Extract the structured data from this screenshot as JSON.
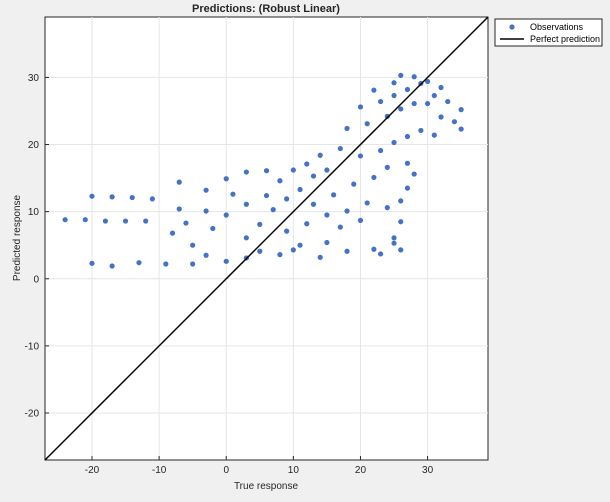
{
  "chart_data": {
    "type": "scatter",
    "title": "Predictions: (Robust Linear)",
    "xlabel": "True response",
    "ylabel": "Predicted response",
    "xlim": [
      -27,
      39
    ],
    "ylim": [
      -27,
      39
    ],
    "xticks": [
      -20,
      -10,
      0,
      10,
      20,
      30
    ],
    "yticks": [
      -20,
      -10,
      0,
      10,
      20,
      30
    ],
    "grid": true,
    "legend_location": "outside-top-right",
    "series": [
      {
        "name": "Observations",
        "kind": "markers",
        "color": "#4472c4",
        "points": [
          [
            -24,
            8.8
          ],
          [
            -21,
            8.8
          ],
          [
            -18,
            8.6
          ],
          [
            -15,
            8.6
          ],
          [
            -12,
            8.6
          ],
          [
            -20,
            12.3
          ],
          [
            -17,
            12.2
          ],
          [
            -14,
            12.1
          ],
          [
            -11,
            11.9
          ],
          [
            -20,
            2.3
          ],
          [
            -17,
            1.9
          ],
          [
            -13,
            2.4
          ],
          [
            -9,
            2.2
          ],
          [
            -5,
            2.2
          ],
          [
            -8,
            6.8
          ],
          [
            -5,
            5.0
          ],
          [
            -3,
            3.5
          ],
          [
            0,
            2.6
          ],
          [
            3,
            3.1
          ],
          [
            -7,
            10.4
          ],
          [
            -3,
            10.1
          ],
          [
            -6,
            8.3
          ],
          [
            -2,
            7.5
          ],
          [
            0,
            9.5
          ],
          [
            -7,
            14.4
          ],
          [
            -3,
            13.2
          ],
          [
            0,
            14.9
          ],
          [
            1,
            12.6
          ],
          [
            3,
            11.1
          ],
          [
            3,
            6.1
          ],
          [
            5,
            4.1
          ],
          [
            8,
            3.6
          ],
          [
            11,
            5.0
          ],
          [
            14,
            3.2
          ],
          [
            18,
            4.1
          ],
          [
            22,
            4.4
          ],
          [
            25,
            5.3
          ],
          [
            23,
            3.7
          ],
          [
            15,
            5.4
          ],
          [
            10,
            4.3
          ],
          [
            5,
            8.1
          ],
          [
            7,
            10.3
          ],
          [
            9,
            11.9
          ],
          [
            11,
            13.3
          ],
          [
            13,
            15.3
          ],
          [
            15,
            16.2
          ],
          [
            6,
            12.4
          ],
          [
            8,
            14.6
          ],
          [
            10,
            16.2
          ],
          [
            12,
            17.1
          ],
          [
            14,
            18.4
          ],
          [
            9,
            7.1
          ],
          [
            12,
            8.2
          ],
          [
            15,
            9.5
          ],
          [
            18,
            10.1
          ],
          [
            21,
            11.3
          ],
          [
            24,
            10.6
          ],
          [
            16,
            12.5
          ],
          [
            19,
            14.1
          ],
          [
            22,
            15.1
          ],
          [
            24,
            16.6
          ],
          [
            27,
            17.2
          ],
          [
            28,
            15.6
          ],
          [
            17,
            19.4
          ],
          [
            20,
            18.3
          ],
          [
            23,
            19.1
          ],
          [
            25,
            20.3
          ],
          [
            27,
            21.2
          ],
          [
            18,
            22.4
          ],
          [
            21,
            23.1
          ],
          [
            24,
            24.2
          ],
          [
            26,
            25.3
          ],
          [
            28,
            26.1
          ],
          [
            20,
            25.6
          ],
          [
            23,
            26.4
          ],
          [
            25,
            27.3
          ],
          [
            27,
            28.2
          ],
          [
            29,
            29.1
          ],
          [
            22,
            28.1
          ],
          [
            25,
            29.2
          ],
          [
            26,
            30.3
          ],
          [
            28,
            30.1
          ],
          [
            30,
            29.4
          ],
          [
            31,
            27.3
          ],
          [
            33,
            26.4
          ],
          [
            35,
            25.2
          ],
          [
            34,
            23.4
          ],
          [
            35,
            22.3
          ],
          [
            32,
            24.1
          ],
          [
            30,
            26.1
          ],
          [
            32,
            28.5
          ],
          [
            29,
            22.1
          ],
          [
            31,
            21.4
          ],
          [
            26,
            11.6
          ],
          [
            27,
            13.5
          ],
          [
            26,
            8.5
          ],
          [
            25,
            6.1
          ],
          [
            26,
            4.3
          ],
          [
            13,
            11.1
          ],
          [
            17,
            7.7
          ],
          [
            20,
            8.7
          ],
          [
            6,
            16.1
          ],
          [
            3,
            15.9
          ]
        ]
      },
      {
        "name": "Perfect prediction",
        "kind": "line",
        "color": "#000000",
        "points": [
          [
            -27,
            -27
          ],
          [
            39,
            39
          ]
        ]
      }
    ]
  }
}
